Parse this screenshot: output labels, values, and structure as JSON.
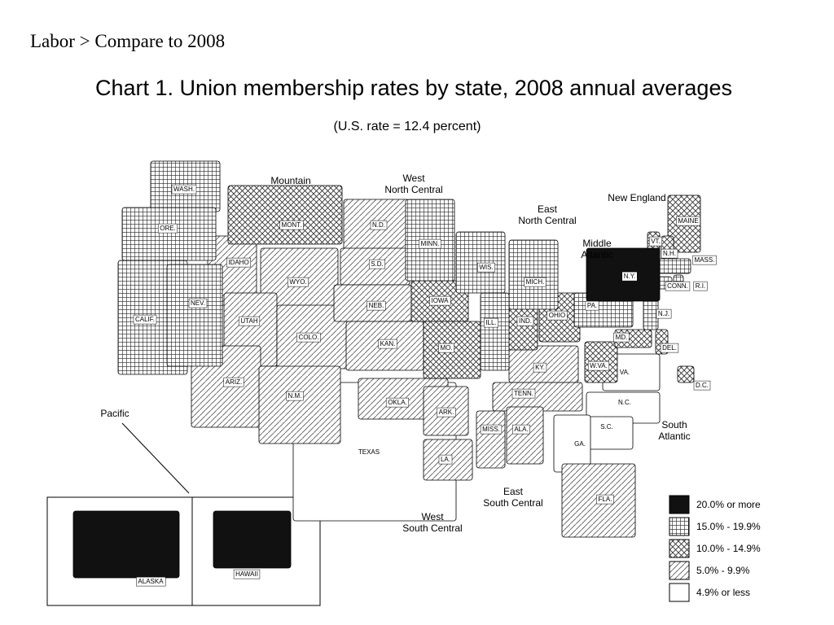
{
  "header": {
    "breadcrumb": "Labor > Compare to 2008"
  },
  "map": {
    "title": "Chart 1.  Union membership rates by state, 2008 annual averages",
    "subtitle": "(U.S. rate = 12.4 percent)",
    "regions": [
      [
        "Mountain"
      ],
      [
        "West",
        "North Central"
      ],
      [
        "East",
        "North Central"
      ],
      [
        "New England"
      ],
      [
        "Middle",
        "Atlantic"
      ],
      [
        "Pacific"
      ],
      [
        "South",
        "Atlantic"
      ],
      [
        "East",
        "South Central"
      ],
      [
        "West",
        "South Central"
      ]
    ],
    "legend": [
      {
        "label": "20.0% or more",
        "pattern": "solid",
        "states": [
          "N.Y.",
          "ALASKA",
          "HAWAII"
        ]
      },
      {
        "label": "15.0% - 19.9%",
        "pattern": "grid",
        "states": [
          "WASH.",
          "ORE.",
          "CALIF.",
          "NEV.",
          "MINN.",
          "WIS.",
          "MICH.",
          "ILL.",
          "PA.",
          "N.J.",
          "CONN.",
          "R.I.",
          "MASS."
        ]
      },
      {
        "label": "10.0% - 14.9%",
        "pattern": "crosshatch",
        "states": [
          "MONT.",
          "IOWA",
          "MO.",
          "IND.",
          "OHIO",
          "W.VA.",
          "MAINE",
          "VT.",
          "N.H.",
          "MD.",
          "DEL.",
          "D.C."
        ]
      },
      {
        "label": "5.0% - 9.9%",
        "pattern": "diagonal",
        "states": [
          "IDAHO",
          "WYO.",
          "UTAH",
          "COLO.",
          "ARIZ.",
          "N.M.",
          "N.D.",
          "S.D.",
          "NEB.",
          "KAN.",
          "OKLA.",
          "ARK.",
          "KY.",
          "TENN.",
          "MISS.",
          "ALA.",
          "FLA.",
          "LA."
        ]
      },
      {
        "label": "4.9% or less",
        "pattern": "none",
        "states": [
          "TEXAS",
          "VA.",
          "N.C.",
          "S.C.",
          "GA."
        ]
      }
    ]
  }
}
